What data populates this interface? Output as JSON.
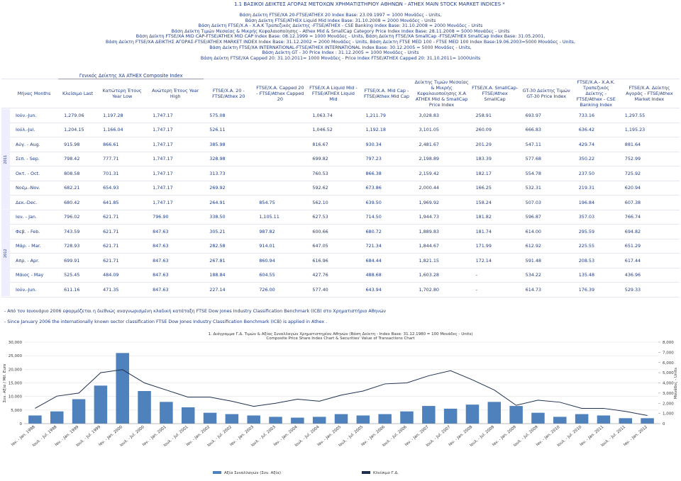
{
  "header": {
    "title": "1.1  ΒΑΣΙΚΟΙ ΔΕΙΚΤΕΣ ΑΓΟΡΑΣ ΜΕΤΟΧΩΝ ΧΡΗΜΑΤΙΣΤΗΡΙΟΥ ΑΘΗΝΩΝ  -  ATHEX MAIN STOCK MARKET INDICES *",
    "notes": [
      "Βάση Δείκτη FTSE/XA 20-FTSE/ATHEX 20 Index Base: 23.09.1997 = 1000 Μονάδες - Units,",
      "Βάση Δείκτη FTSE/ATHEX Liquid Mid Index Base: 31.10.2008 = 2000 Μονάδες - Units",
      "Βάση Δείκτη FTSE/X.A - X.A.K Τραπεζικός Δείκτης -FTSE/ATHEX - CSE Banking Index Base: 31.10.2008 = 2000 Μονάδες - Units",
      "Βάση Δείκτη Τιμών Μεσαίας & Μικρής Κεφαλαιοποίησης - Athex Mid & SmallCap Category Price Index Index Base: 28.11.2008 = 5000 Μονάδες - Units",
      "Βάση Δείκτη FTSE/XA MID CAP-FTSE/ATHEX MID CAP Index Base: 08.12.1999 = 1000  Μονάδες - Units, Βάση Δείκτη FTSE/XA SmallCap -FTSE/ATHEX SmallCap Index Base: 31.05.2001,",
      "Βάση Δείκτη FTSE/XA ΔΕΙΚΤΗΣ ΑΓΟΡΑΣ-FTSE/ATHEX MARKET INDEX Index Base: 31.12.2002  = 2000  Μονάδες - Units, Βάση Δείκτη FTSE MED 100 - FTSE MED 100 Index Base:19.06.2003=5000 Μονάδες - Units,",
      "Βάση Δείκτη FTSE/XA INTERNATIONAL-FTSE/ATHEX INTERNATIONAL Index Base: 30.12.2005 = 5000  Μονάδες - Units,",
      "Βάση Δείκτη GT - 30 Price Index : 31.12.2005 = 1000  Μονάδες - Units",
      "Βάση Δείκτη FTSE/XA Capped 20: 31.10.2011= 1000 Μονάδες - Price Index FTSE/ATHEX Capped 20: 31.10.2011= 1000Units"
    ]
  },
  "table": {
    "group": "Γενικός Δείκτης ΧΑ ATHEX Composite Index",
    "columns": [
      "Μήνας Months",
      "Κλείσιμο Last",
      "Κατώτερη Έτους Year  Low",
      "Ανώτερη  Έτους Year  High",
      "FTSE/X.A. 20 - FTSE/Athex 20",
      "FTSE/X.A. Capped 20 - FTSE/Athex Capped 20",
      "FTSE/X.A Liquid Mid - FTSE/ATHEX Liquid Mid",
      "FTSE/X.A. Mid Cap - FTSE/Athex Mid Cap",
      "Δείκτης Τιμών Μεσαίας & Μικρής Κεφαλαιοποίησης Χ.Α ATHEX Mid & SmallCap Price Index",
      "FTSE/X.A. SmallCap-FTSE/Athex SmallCap",
      "GT-30 Δείκτης Τιμών GT-30 Price Index",
      "FTSE/X.A.- X.A.K. Τραπεζικός Δείκτης - FTSE/Athex - CSE Banking Index",
      "FTSE/X.A. Δείκτης Αγοράς - FTSE/Athex Market Index"
    ],
    "rows": [
      [
        "2011",
        "Ιούν.-Jun.",
        "1,279.06",
        "1,197.28",
        "1,747.17",
        "575.08",
        null,
        "1,063.74",
        "1,211.79",
        "3,028.83",
        "258.91",
        "693.97",
        "733.16",
        "1,297.55"
      ],
      [
        null,
        "Ιούλ.-Jul.",
        "1,204.15",
        "1,166.04",
        "1,747.17",
        "526.11",
        null,
        "1,046.52",
        "1,192.18",
        "3,101.05",
        "260.09",
        "666.83",
        "636.42",
        "1,195.23"
      ],
      [
        null,
        "Αύγ. - Aug.",
        "915.98",
        "866.61",
        "1,747.17",
        "385.98",
        null,
        "816.67",
        "930.34",
        "2,481.67",
        "201.29",
        "547.11",
        "429.74",
        "881.64"
      ],
      [
        null,
        "Σεπ. - Sep.",
        "798.42",
        "777.71",
        "1,747.17",
        "328.98",
        null,
        "699.82",
        "797.23",
        "2,198.89",
        "183.39",
        "577.68",
        "350.22",
        "752.99"
      ],
      [
        null,
        "Οκτ. - Oct.",
        "808.58",
        "701.31",
        "1,747.17",
        "313.73",
        null,
        "760.53",
        "866.38",
        "2,159.42",
        "182.17",
        "554.78",
        "237.50",
        "725.92"
      ],
      [
        null,
        "Νοέμ.-Nov.",
        "682.21",
        "654.93",
        "1,747.17",
        "269.92",
        null,
        "592.62",
        "673.86",
        "2,000.44",
        "166.25",
        "532.31",
        "219.31",
        "620.94"
      ],
      [
        null,
        "Δεκ.-Dec.",
        "680.42",
        "641.85",
        "1,747.17",
        "264.91",
        "854.75",
        "562.10",
        "639.50",
        "1,969.92",
        "158.24",
        "507.03",
        "196.84",
        "607.38"
      ],
      [
        "2012",
        "Ιαν. - Jan.",
        "796.02",
        "621.71",
        "796.90",
        "338.50",
        "1,105.11",
        "627.53",
        "714.50",
        "1,944.73",
        "181.82",
        "596.87",
        "357.03",
        "766.74"
      ],
      [
        null,
        "Φεβ. - Feb.",
        "743.59",
        "621.71",
        "847.63",
        "305.21",
        "987.82",
        "600.66",
        "680.72",
        "1,889.83",
        "181.74",
        "614.00",
        "295.59",
        "694.82"
      ],
      [
        null,
        "Μάρ. - Mar.",
        "728.93",
        "621.71",
        "847.63",
        "282.58",
        "914.01",
        "647.05",
        "721.34",
        "1,844.67",
        "171.99",
        "612.92",
        "225.55",
        "651.29"
      ],
      [
        null,
        "Απρ. - Apr.",
        "699.91",
        "621.71",
        "847.63",
        "267.81",
        "860.94",
        "616.96",
        "684.44",
        "1,821.15",
        "172.14",
        "591.48",
        "208.53",
        "617.44"
      ],
      [
        null,
        "Μάιος - May",
        "525.45",
        "484.09",
        "847.63",
        "188.84",
        "604.55",
        "427.76",
        "488.68",
        "1,603.28",
        "-",
        "534.22",
        "135.48",
        "436.96"
      ],
      [
        null,
        "Ιούν.-Jun.",
        "611.16",
        "471.35",
        "847.63",
        "227.14",
        "726.00",
        "577.40",
        "643.94",
        "1,702.80",
        "-",
        "614.73",
        "176.39",
        "529.33"
      ]
    ]
  },
  "footnotes": [
    "- Από τον Ιανουάριο 2006  εφαρμόζεται η διεθνώς αναγνωρισμένη κλαδική κατάταξη FTSE Dow Jones Industry Classification Benchmark (ICB) στο Χρηματιστήριο Αθηνών",
    "- Since January 2006 the internationally known sector classification  FTSE Dow Jones Industry Classification Benchmark (ICB)  is applied in Athex ."
  ],
  "chart_data": {
    "type": "bar-line",
    "title": "1.  Διάγραμμα Γ.Δ. Τιμών & Αξίας Συναλλαγών Χρηματιστηρίου Αθηνών (Βάση Δείκτη - Index Base: 31.12.1980 = 100 Μονάδες - Units)",
    "subtitle": "Composite Price Share Index Chart  & Securities' Value of Transactions Chart",
    "y_label": "Συν. Αξία / Mil. Euro",
    "y2_label": "Μονάδες - Units",
    "categories": [
      "Ιαν. - Jan. 1998",
      "Ιουλ. - Jul. 1998",
      "Ιαν. - Jan. 1999",
      "Ιουλ. - Jul. 1999",
      "Ιαν. - Jan. 2000",
      "Ιουλ. - Jul. 2000",
      "Ιαν. - Jan. 2001",
      "Ιουλ. - Jul. 2001",
      "Ιαν. - Jan. 2002",
      "Ιουλ. - Jul. 2002",
      "Ιαν. - Jan. 2003",
      "Ιουλ. - Jul. 2003",
      "Ιαν. - Jan. 2004",
      "Ιουλ. - Jul. 2004",
      "Ιαν. - Jan. 2005",
      "Ιουλ. - Jul. 2005",
      "Ιαν. - Jan. 2006",
      "Ιουλ. - Jul. 2006",
      "Ιαν. - Jan. 2007",
      "Ιουλ. - Jul. 2007",
      "Ιαν. - Jan. 2008",
      "Ιουλ. - Jul. 2008",
      "Ιαν. - Jan. 2009",
      "Ιουλ. - Jul. 2009",
      "Ιαν. - Jan. 2010",
      "Ιουλ. - Jul. 2010",
      "Ιαν. - Jan. 2011",
      "Ιουλ. - Jul. 2011",
      "Ιαν. - Jan. 2012"
    ],
    "series": [
      {
        "name": "Αξία Συναλλαγών (Συν. Αξία)",
        "color": "#4f81bd",
        "values": [
          3000,
          4500,
          9000,
          14000,
          26000,
          12000,
          8000,
          6000,
          4000,
          3500,
          3000,
          2500,
          2200,
          2500,
          3500,
          3000,
          3500,
          4500,
          6500,
          5500,
          7000,
          8000,
          6500,
          4000,
          2500,
          3500,
          3000,
          2000,
          2000
        ]
      },
      {
        "name": "Κλείσιμο Γ.Δ.",
        "color": "#1f2f4f",
        "axis": "y2",
        "values": [
          1500,
          2700,
          3000,
          5000,
          5300,
          4000,
          3300,
          2600,
          2600,
          2200,
          1700,
          2000,
          2400,
          2200,
          2800,
          3200,
          3900,
          4000,
          4700,
          5200,
          4300,
          3300,
          1800,
          2300,
          2100,
          1500,
          1500,
          1200,
          800
        ]
      }
    ],
    "ylim": [
      0,
      30000
    ],
    "yticks": [
      0,
      {
        "value": 5000,
        "label": "5,000"
      },
      {
        "value": 10000,
        "label": "10,000"
      },
      {
        "value": 15000,
        "label": "15,000"
      },
      {
        "value": 20000,
        "label": "20,000"
      },
      {
        "value": 25000,
        "label": "25,000"
      },
      {
        "value": 30000,
        "label": "30,000"
      }
    ],
    "y2lim": [
      0,
      8000
    ],
    "y2ticks": [
      0,
      {
        "value": 1000,
        "label": "1,000"
      },
      {
        "value": 2000,
        "label": "2,000"
      },
      {
        "value": 3000,
        "label": "3,000"
      },
      {
        "value": 4000,
        "label": "4,000"
      },
      {
        "value": 5000,
        "label": "5,000"
      },
      {
        "value": 6000,
        "label": "6,000"
      },
      {
        "value": 7000,
        "label": "7,000"
      },
      {
        "value": 8000,
        "label": "8,000"
      }
    ],
    "grid": true
  }
}
